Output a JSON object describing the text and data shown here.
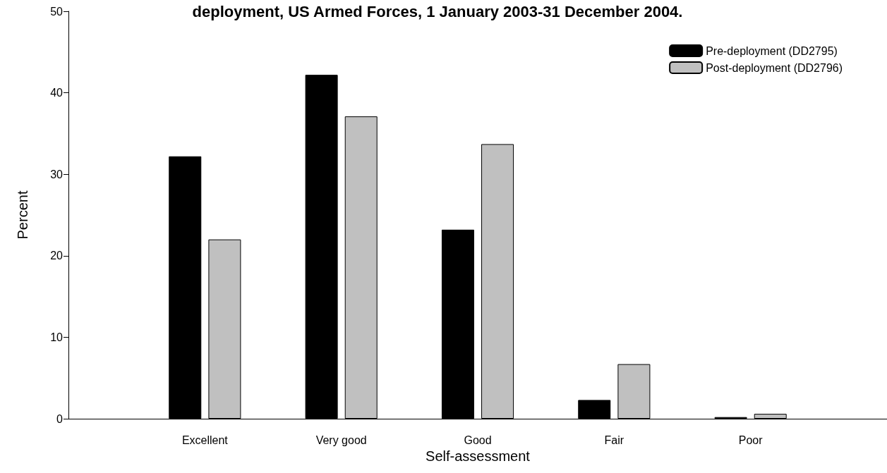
{
  "chart_data": {
    "type": "bar",
    "title": "deployment, US Armed Forces, 1 January 2003-31 December 2004.",
    "xlabel": "Self-assessment",
    "ylabel": "Percent",
    "categories": [
      "Excellent",
      "Very good",
      "Good",
      "Fair",
      "Poor"
    ],
    "series": [
      {
        "name": "Pre-deployment (DD2795)",
        "color": "#000000",
        "values": [
          32.2,
          42.2,
          23.2,
          2.3,
          0.2
        ]
      },
      {
        "name": "Post-deployment (DD2796)",
        "color": "#c0c0c0",
        "values": [
          22.0,
          37.1,
          33.7,
          6.7,
          0.6
        ]
      }
    ],
    "ylim": [
      0,
      50
    ],
    "yticks": [
      0,
      10,
      20,
      30,
      40,
      50
    ],
    "grid": false,
    "legend": "top right"
  }
}
